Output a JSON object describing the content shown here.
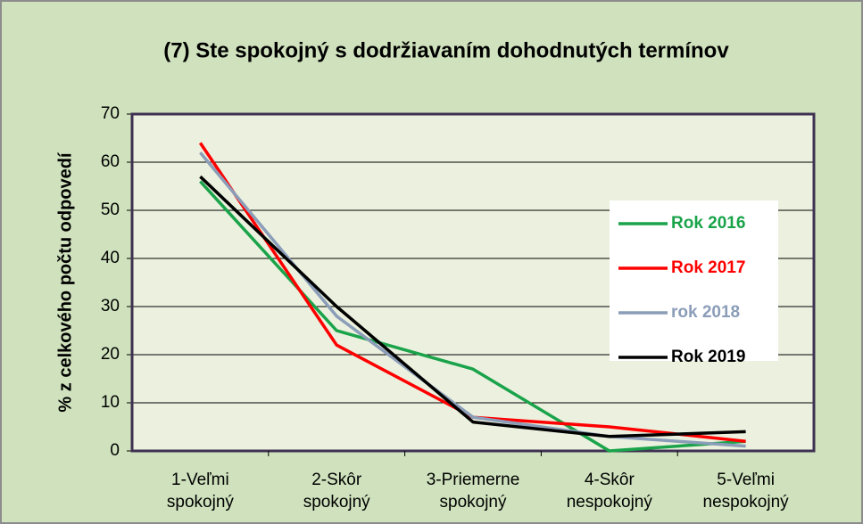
{
  "chart_data": {
    "type": "line",
    "title": "(7) Ste spokojný s dodržiavaním dohodnutých termínov",
    "ylabel": "% z celkového počtu odpovedí",
    "categories": [
      "1-Veľmi spokojný",
      "2-Skôr spokojný",
      "3-Priemerne spokojný",
      "4-Skôr nespokojný",
      "5-Veľmi nespokojný"
    ],
    "series": [
      {
        "name": "Rok 2016",
        "color": "#1aa34a",
        "values": [
          56,
          25,
          17,
          0,
          2
        ]
      },
      {
        "name": "Rok 2017",
        "color": "#ff0000",
        "values": [
          64,
          22,
          7,
          5,
          2
        ]
      },
      {
        "name": "rok 2018",
        "color": "#8b9db8",
        "values": [
          62,
          28,
          7,
          3,
          1
        ]
      },
      {
        "name": "Rok 2019",
        "color": "#000000",
        "values": [
          57,
          30,
          6,
          3,
          4
        ]
      }
    ],
    "ylim": [
      0,
      70
    ],
    "yticks": [
      0,
      10,
      20,
      30,
      40,
      50,
      60,
      70
    ],
    "grid": true,
    "legend": "right"
  }
}
